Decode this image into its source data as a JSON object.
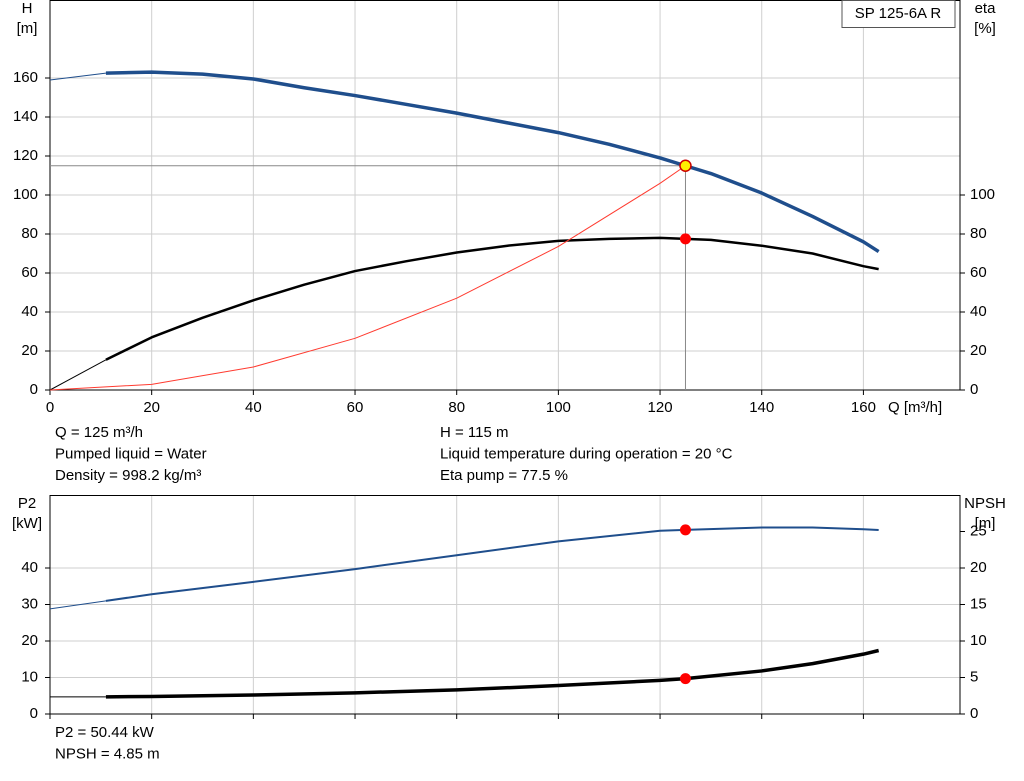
{
  "chart_data": [
    {
      "type": "line",
      "title": "SP 125-6A R",
      "x_label": "Q [m³/h]",
      "y_label": [
        "H",
        "[m]"
      ],
      "y2_label": [
        "eta",
        "[%]"
      ],
      "xlim": [
        0,
        179
      ],
      "xticks": [
        0,
        20,
        40,
        60,
        80,
        100,
        120,
        140,
        160
      ],
      "xtick_labels": true,
      "ylim": [
        0,
        200
      ],
      "yticks": [
        0,
        20,
        40,
        60,
        80,
        100,
        120,
        140,
        160
      ],
      "y2lim": [
        0,
        200
      ],
      "y2ticks": [
        0,
        20,
        40,
        60,
        80,
        100
      ],
      "grid": true,
      "series": [
        {
          "color": "#1f4e8c",
          "line_width": 1,
          "axis": "y",
          "x": [
            0,
            11
          ],
          "values": [
            159,
            162.5
          ]
        },
        {
          "color": "#1f4e8c",
          "line_width": 3.5,
          "axis": "y",
          "x": [
            11,
            20,
            30,
            40,
            50,
            60,
            70,
            80,
            90,
            100,
            110,
            120,
            125,
            130,
            140,
            150,
            160,
            163
          ],
          "values": [
            162.5,
            163,
            162,
            159.5,
            155,
            151,
            146.5,
            142,
            137,
            132,
            126,
            119,
            115,
            111,
            101,
            89,
            76,
            71
          ]
        },
        {
          "color": "#000000",
          "line_width": 1,
          "axis": "y2",
          "x": [
            0,
            11
          ],
          "values": [
            0,
            15.5
          ]
        },
        {
          "color": "#000000",
          "line_width": 2.5,
          "axis": "y2",
          "x": [
            11,
            20,
            30,
            40,
            50,
            60,
            70,
            80,
            90,
            100,
            110,
            120,
            125,
            130,
            140,
            150,
            160,
            163
          ],
          "values": [
            15.5,
            27,
            37,
            46,
            54,
            61,
            66,
            70.5,
            74,
            76.5,
            77.5,
            78,
            77.5,
            77,
            74,
            70,
            63.5,
            62
          ]
        },
        {
          "color": "#ff3b30",
          "line_width": 1,
          "axis": "y",
          "x": [
            0,
            20,
            40,
            60,
            80,
            100,
            120,
            125
          ],
          "values": [
            0,
            2.9,
            11.8,
            26.5,
            47.1,
            73.6,
            106,
            115
          ]
        }
      ],
      "points": [
        {
          "x": 125,
          "value": 115,
          "axis": "y",
          "color": "#ffee00",
          "guide": true
        },
        {
          "x": 125,
          "value": 77.5,
          "axis": "y2",
          "color": "#ff0000",
          "guide": false
        }
      ],
      "notes_left": [
        "Q = 125 m³/h",
        "Pumped liquid = Water",
        "Density = 998.2 kg/m³"
      ],
      "notes_right": [
        "H = 115 m",
        "Liquid temperature during operation = 20 °C",
        "Eta pump = 77.5 %"
      ]
    },
    {
      "type": "line",
      "y_label": [
        "P2",
        "[kW]"
      ],
      "y2_label": [
        "NPSH",
        "[m]"
      ],
      "xlim": [
        0,
        179
      ],
      "xticks": [
        0,
        20,
        40,
        60,
        80,
        100,
        120,
        140,
        160
      ],
      "xtick_labels": false,
      "ylim": [
        0,
        60
      ],
      "yticks": [
        0,
        10,
        20,
        30,
        40
      ],
      "y2lim": [
        0,
        30
      ],
      "y2ticks": [
        0,
        5,
        10,
        15,
        20,
        25
      ],
      "grid": true,
      "series": [
        {
          "color": "#1f4e8c",
          "line_width": 1,
          "axis": "y",
          "x": [
            0,
            11
          ],
          "values": [
            28.8,
            31
          ]
        },
        {
          "color": "#1f4e8c",
          "line_width": 2,
          "axis": "y",
          "x": [
            11,
            20,
            40,
            60,
            80,
            100,
            120,
            125,
            140,
            150,
            160,
            163
          ],
          "values": [
            31,
            32.8,
            36.2,
            39.7,
            43.5,
            47.3,
            50.2,
            50.44,
            51.1,
            51.1,
            50.6,
            50.4
          ]
        },
        {
          "color": "#000000",
          "line_width": 1,
          "axis": "y2",
          "x": [
            0,
            11
          ],
          "values": [
            2.35,
            2.35
          ]
        },
        {
          "color": "#000000",
          "line_width": 3.5,
          "axis": "y2",
          "x": [
            11,
            20,
            40,
            60,
            80,
            100,
            120,
            125,
            140,
            150,
            160,
            163
          ],
          "values": [
            2.35,
            2.4,
            2.6,
            2.9,
            3.3,
            3.9,
            4.6,
            4.85,
            5.9,
            6.9,
            8.2,
            8.7
          ]
        }
      ],
      "points": [
        {
          "x": 125,
          "value": 50.44,
          "axis": "y",
          "color": "#ff0000",
          "guide": false
        },
        {
          "x": 125,
          "value": 4.85,
          "axis": "y2",
          "color": "#ff0000",
          "guide": false
        }
      ],
      "notes_left": [
        "P2 = 50.44 kW",
        "NPSH = 4.85 m"
      ]
    }
  ]
}
